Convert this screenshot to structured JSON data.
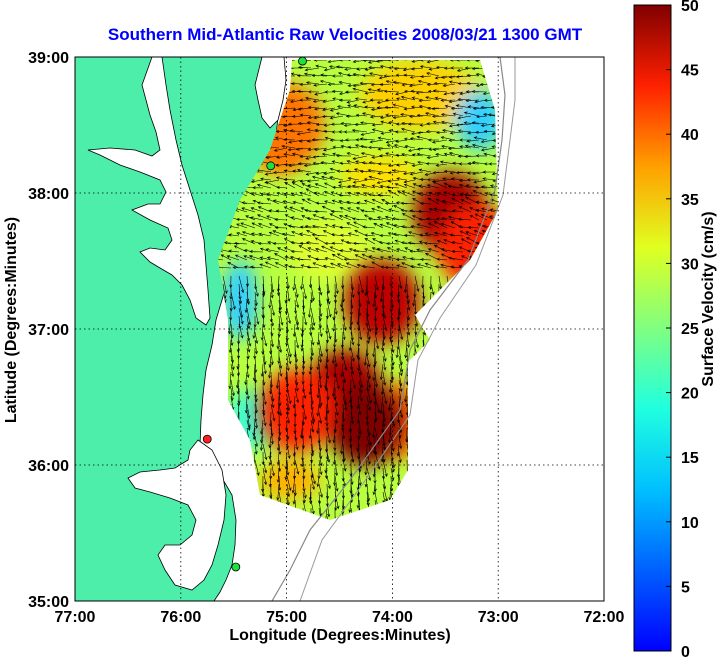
{
  "chart_data": {
    "type": "heatmap",
    "title": "Southern Mid-Atlantic Raw Velocities 2008/03/21 1300 GMT",
    "xlabel": "Longitude (Degrees:Minutes)",
    "ylabel": "Latitude (Degrees:Minutes)",
    "x_ticks": [
      "77:00",
      "76:00",
      "75:00",
      "74:00",
      "73:00",
      "72:00"
    ],
    "y_ticks": [
      "39:00",
      "38:00",
      "37:00",
      "36:00",
      "35:00"
    ],
    "xlim": [
      -77,
      -72
    ],
    "ylim": [
      35,
      39
    ],
    "grid": true,
    "colorbar": {
      "label": "Surface Velocity (cm/s)",
      "range": [
        0,
        50
      ],
      "ticks": [
        "0",
        "5",
        "10",
        "15",
        "20",
        "25",
        "30",
        "35",
        "40",
        "45",
        "50"
      ],
      "colormap": "jet"
    },
    "velocity_hotspots": [
      {
        "lon": -74.45,
        "lat": 36.55,
        "speed": 48
      },
      {
        "lon": -74.25,
        "lat": 36.3,
        "speed": 50
      },
      {
        "lon": -74.1,
        "lat": 37.2,
        "speed": 47
      },
      {
        "lon": -73.45,
        "lat": 37.85,
        "speed": 48
      },
      {
        "lon": -73.2,
        "lat": 37.6,
        "speed": 42
      },
      {
        "lon": -75.0,
        "lat": 38.5,
        "speed": 38
      },
      {
        "lon": -74.9,
        "lat": 36.4,
        "speed": 42
      }
    ],
    "stations": [
      {
        "lon": -74.85,
        "lat": 38.97,
        "color": "green"
      },
      {
        "lon": -75.15,
        "lat": 38.2,
        "color": "green"
      },
      {
        "lon": -75.75,
        "lat": 36.19,
        "color": "red"
      },
      {
        "lon": -75.48,
        "lat": 35.25,
        "color": "green"
      }
    ]
  }
}
